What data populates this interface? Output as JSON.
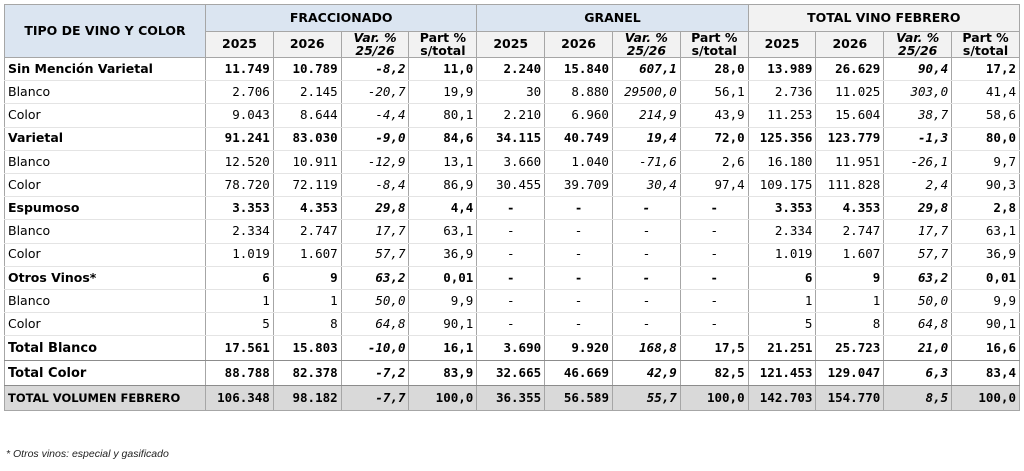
{
  "table": {
    "col_head": "TIPO DE VINO Y COLOR",
    "groups": [
      "FRACCIONADO",
      "GRANEL",
      "TOTAL VINO FEBRERO"
    ],
    "sub": {
      "y1": "2025",
      "y2": "2026",
      "var_l1": "Var. %",
      "var_l2": "25/26",
      "part_l1": "Part %",
      "part_l2": "s/total"
    },
    "rows": [
      {
        "label": "Sin Mención Varietal",
        "type": "bold",
        "cells": [
          "11.749",
          "10.789",
          "-8,2",
          "11,0",
          "2.240",
          "15.840",
          "607,1",
          "28,0",
          "13.989",
          "26.629",
          "90,4",
          "17,2"
        ]
      },
      {
        "label": "Blanco",
        "type": "normal",
        "cells": [
          "2.706",
          "2.145",
          "-20,7",
          "19,9",
          "30",
          "8.880",
          "29500,0",
          "56,1",
          "2.736",
          "11.025",
          "303,0",
          "41,4"
        ]
      },
      {
        "label": "Color",
        "type": "normal",
        "cells": [
          "9.043",
          "8.644",
          "-4,4",
          "80,1",
          "2.210",
          "6.960",
          "214,9",
          "43,9",
          "11.253",
          "15.604",
          "38,7",
          "58,6"
        ]
      },
      {
        "label": "Varietal",
        "type": "bold",
        "cells": [
          "91.241",
          "83.030",
          "-9,0",
          "84,6",
          "34.115",
          "40.749",
          "19,4",
          "72,0",
          "125.356",
          "123.779",
          "-1,3",
          "80,0"
        ]
      },
      {
        "label": "Blanco",
        "type": "normal",
        "cells": [
          "12.520",
          "10.911",
          "-12,9",
          "13,1",
          "3.660",
          "1.040",
          "-71,6",
          "2,6",
          "16.180",
          "11.951",
          "-26,1",
          "9,7"
        ]
      },
      {
        "label": "Color",
        "type": "normal",
        "cells": [
          "78.720",
          "72.119",
          "-8,4",
          "86,9",
          "30.455",
          "39.709",
          "30,4",
          "97,4",
          "109.175",
          "111.828",
          "2,4",
          "90,3"
        ]
      },
      {
        "label": "Espumoso",
        "type": "bold",
        "cells": [
          "3.353",
          "4.353",
          "29,8",
          "4,4",
          "-",
          "-",
          "-",
          "-",
          "3.353",
          "4.353",
          "29,8",
          "2,8"
        ]
      },
      {
        "label": "Blanco",
        "type": "normal",
        "cells": [
          "2.334",
          "2.747",
          "17,7",
          "63,1",
          "-",
          "-",
          "-",
          "-",
          "2.334",
          "2.747",
          "17,7",
          "63,1"
        ]
      },
      {
        "label": "Color",
        "type": "normal",
        "cells": [
          "1.019",
          "1.607",
          "57,7",
          "36,9",
          "-",
          "-",
          "-",
          "-",
          "1.019",
          "1.607",
          "57,7",
          "36,9"
        ]
      },
      {
        "label": "Otros Vinos*",
        "type": "bold",
        "cells": [
          "6",
          "9",
          "63,2",
          "0,01",
          "-",
          "-",
          "-",
          "-",
          "6",
          "9",
          "63,2",
          "0,01"
        ]
      },
      {
        "label": "Blanco",
        "type": "normal",
        "cells": [
          "1",
          "1",
          "50,0",
          "9,9",
          "-",
          "-",
          "-",
          "-",
          "1",
          "1",
          "50,0",
          "9,9"
        ]
      },
      {
        "label": "Color",
        "type": "normal",
        "cells": [
          "5",
          "8",
          "64,8",
          "90,1",
          "-",
          "-",
          "-",
          "-",
          "5",
          "8",
          "64,8",
          "90,1"
        ]
      },
      {
        "label": "Total Blanco",
        "type": "total",
        "cells": [
          "17.561",
          "15.803",
          "-10,0",
          "16,1",
          "3.690",
          "9.920",
          "168,8",
          "17,5",
          "21.251",
          "25.723",
          "21,0",
          "16,6"
        ]
      },
      {
        "label": "Total Color",
        "type": "total",
        "cells": [
          "88.788",
          "82.378",
          "-7,2",
          "83,9",
          "32.665",
          "46.669",
          "42,9",
          "82,5",
          "121.453",
          "129.047",
          "6,3",
          "83,4"
        ]
      },
      {
        "label": "TOTAL VOLUMEN FEBRERO",
        "type": "grand",
        "cells": [
          "106.348",
          "98.182",
          "-7,7",
          "100,0",
          "36.355",
          "56.589",
          "55,7",
          "100,0",
          "142.703",
          "154.770",
          "8,5",
          "100,0"
        ]
      }
    ],
    "footnote": "* Otros vinos: especial y gasificado",
    "colors": {
      "header_blue": "#dbe5f1",
      "header_grey": "#f2f2f2",
      "grand_total": "#d9d9d9",
      "border": "#a6a6a6"
    }
  }
}
